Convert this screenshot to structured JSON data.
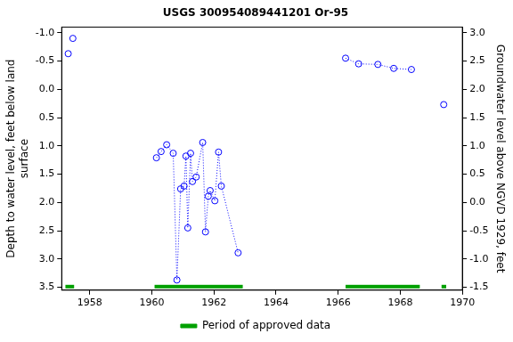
{
  "chart_data": {
    "type": "scatter",
    "title": "USGS 300954089441201 Or-95",
    "y_label": [
      "Depth to water level, feet below land",
      "surface"
    ],
    "y2_label": "Groundwater level above NGVD 1929, feet",
    "color": "#0000ff",
    "marker": "circle",
    "line_style": "dotted",
    "series": [
      {
        "x": [
          1957.31
        ],
        "values": [
          -0.63
        ]
      },
      {
        "x": [
          1957.46
        ],
        "values": [
          -0.9
        ]
      },
      {
        "x": [
          1960.15,
          1960.3,
          1960.48,
          1960.69,
          1960.81,
          1960.93,
          1961.04,
          1961.1,
          1961.16,
          1961.25,
          1961.31,
          1961.43,
          1961.64,
          1961.73,
          1961.82,
          1961.88,
          1962.03,
          1962.15,
          1962.24,
          1962.78
        ],
        "values": [
          1.21,
          1.1,
          0.98,
          1.13,
          3.37,
          1.76,
          1.71,
          1.18,
          2.45,
          1.13,
          1.63,
          1.55,
          0.94,
          2.52,
          1.89,
          1.79,
          1.97,
          1.11,
          1.71,
          2.89
        ]
      },
      {
        "x": [
          1966.24,
          1966.66,
          1967.28,
          1967.79,
          1968.36
        ],
        "values": [
          -0.55,
          -0.45,
          -0.44,
          -0.37,
          -0.35
        ]
      },
      {
        "x": [
          1969.4
        ],
        "values": [
          0.27
        ]
      }
    ],
    "approved_periods": {
      "name": "Period of approved data",
      "color": "#00a000",
      "ranges": [
        [
          1957.22,
          1957.5
        ],
        [
          1960.09,
          1962.93
        ],
        [
          1966.24,
          1968.63
        ],
        [
          1969.33,
          1969.48
        ]
      ]
    },
    "xlim": [
      1957.1,
      1970
    ],
    "xticks": [
      1958,
      1960,
      1962,
      1964,
      1966,
      1968,
      1970
    ],
    "ylim": [
      -1.1,
      3.55
    ],
    "yticks": [
      {
        "value": -1.0,
        "label": "-1.0"
      },
      -0.5,
      {
        "value": 0.0,
        "label": "0.0"
      },
      0.5,
      {
        "value": 1.0,
        "label": "1.0"
      },
      1.5,
      {
        "value": 2.0,
        "label": "2.0"
      },
      2.5,
      {
        "value": 3.0,
        "label": "3.0"
      },
      3.5
    ],
    "y2lim": [
      -1.55,
      3.1
    ],
    "y2ticks": [
      -1.5,
      {
        "value": -1.0,
        "label": "-1.0"
      },
      -0.5,
      {
        "value": 0.0,
        "label": "0.0"
      },
      0.5,
      {
        "value": 1.0,
        "label": "1.0"
      },
      1.5,
      {
        "value": 2.0,
        "label": "2.0"
      },
      2.5,
      {
        "value": 3.0,
        "label": "3.0"
      }
    ],
    "grid": false,
    "legend": "bottom"
  }
}
